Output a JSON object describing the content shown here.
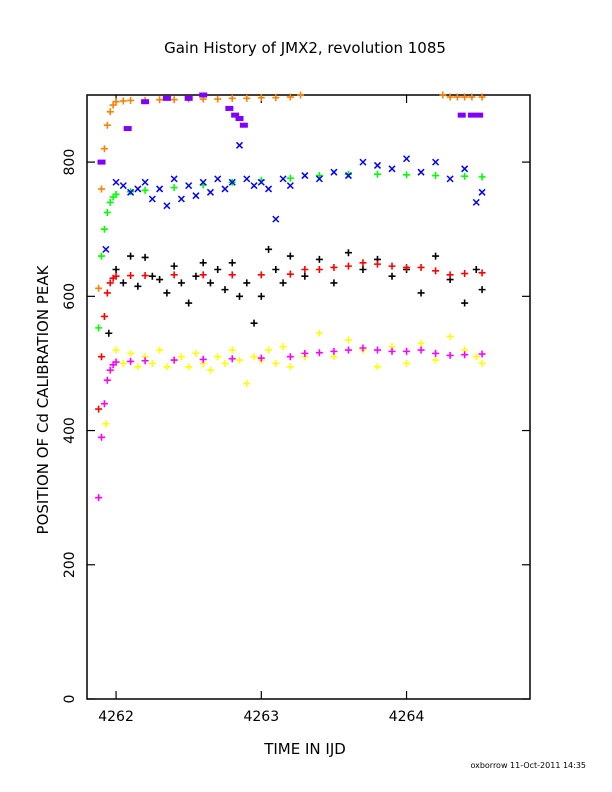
{
  "chart_data": {
    "type": "scatter",
    "title": "Gain History of JMX2, revolution 1085",
    "xlabel": "TIME IN IJD",
    "ylabel": "POSITION OF Cd CALIBRATION PEAK",
    "xlim": [
      4261.8,
      4264.85
    ],
    "ylim": [
      0,
      900
    ],
    "xticks": [
      4262,
      4263,
      4264
    ],
    "yticks": [
      0,
      200,
      400,
      600,
      800
    ],
    "grid": false,
    "footer": "oxborrow 11-Oct-2011 14:35",
    "series": [
      {
        "color": "#ff8000",
        "marker": "plus",
        "x": [
          4261.88,
          4261.9,
          4261.92,
          4261.94,
          4261.96,
          4261.98,
          4262.0,
          4262.05,
          4262.1,
          4262.2,
          4262.3,
          4262.4,
          4262.5,
          4262.6,
          4262.7,
          4262.8,
          4262.9,
          4263.0,
          4263.1,
          4263.2,
          4263.27,
          4264.25,
          4264.3,
          4264.35,
          4264.4,
          4264.45,
          4264.52
        ],
        "y": [
          612,
          760,
          820,
          855,
          875,
          885,
          890,
          891,
          892,
          892,
          893,
          893,
          894,
          894,
          894,
          895,
          895,
          896,
          896,
          897,
          900,
          900,
          897,
          897,
          897,
          897,
          897
        ]
      },
      {
        "color": "#8000ff",
        "marker": "filled",
        "x": [
          4261.9,
          4262.08,
          4262.2,
          4262.35,
          4262.5,
          4262.6,
          4262.78,
          4262.82,
          4262.85,
          4262.88,
          4264.38,
          4264.45,
          4264.5
        ],
        "y": [
          800,
          850,
          890,
          895,
          895,
          900,
          880,
          870,
          865,
          855,
          870,
          870,
          870
        ]
      },
      {
        "color": "#00ff00",
        "marker": "plus",
        "x": [
          4261.88,
          4261.9,
          4261.92,
          4261.94,
          4261.96,
          4261.98,
          4262.0,
          4262.1,
          4262.2,
          4262.4,
          4262.6,
          4262.8,
          4263.0,
          4263.2,
          4263.4,
          4263.6,
          4263.8,
          4264.0,
          4264.2,
          4264.4,
          4264.52
        ],
        "y": [
          553,
          660,
          700,
          725,
          740,
          748,
          752,
          756,
          758,
          762,
          766,
          770,
          773,
          776,
          780,
          782,
          782,
          781,
          780,
          779,
          778
        ]
      },
      {
        "color": "#0000ff",
        "marker": "cross",
        "x": [
          4261.93,
          4262.0,
          4262.05,
          4262.1,
          4262.15,
          4262.2,
          4262.25,
          4262.3,
          4262.35,
          4262.4,
          4262.45,
          4262.5,
          4262.55,
          4262.6,
          4262.65,
          4262.7,
          4262.75,
          4262.8,
          4262.85,
          4262.9,
          4262.95,
          4263.0,
          4263.05,
          4263.1,
          4263.15,
          4263.2,
          4263.3,
          4263.4,
          4263.5,
          4263.6,
          4263.7,
          4263.8,
          4263.9,
          4264.0,
          4264.1,
          4264.2,
          4264.3,
          4264.4,
          4264.48,
          4264.52
        ],
        "y": [
          670,
          770,
          765,
          755,
          760,
          770,
          745,
          760,
          735,
          775,
          745,
          765,
          750,
          770,
          755,
          775,
          760,
          770,
          825,
          775,
          765,
          770,
          760,
          715,
          775,
          765,
          780,
          775,
          785,
          780,
          800,
          795,
          790,
          805,
          785,
          800,
          775,
          790,
          740,
          755
        ]
      },
      {
        "color": "#000000",
        "marker": "plus",
        "x": [
          4261.95,
          4262.0,
          4262.05,
          4262.1,
          4262.15,
          4262.2,
          4262.25,
          4262.3,
          4262.35,
          4262.4,
          4262.45,
          4262.5,
          4262.55,
          4262.6,
          4262.65,
          4262.7,
          4262.75,
          4262.8,
          4262.85,
          4262.9,
          4262.95,
          4263.0,
          4263.05,
          4263.1,
          4263.15,
          4263.2,
          4263.3,
          4263.4,
          4263.5,
          4263.6,
          4263.7,
          4263.8,
          4263.9,
          4264.0,
          4264.1,
          4264.2,
          4264.3,
          4264.4,
          4264.48,
          4264.52
        ],
        "y": [
          545,
          640,
          620,
          660,
          615,
          658,
          630,
          625,
          605,
          645,
          620,
          590,
          630,
          650,
          620,
          640,
          610,
          650,
          600,
          620,
          560,
          600,
          670,
          640,
          620,
          660,
          630,
          655,
          620,
          665,
          640,
          655,
          630,
          640,
          605,
          660,
          625,
          590,
          640,
          610
        ]
      },
      {
        "color": "#ff0000",
        "marker": "plus",
        "x": [
          4261.88,
          4261.9,
          4261.92,
          4261.94,
          4261.96,
          4261.98,
          4262.0,
          4262.1,
          4262.2,
          4262.4,
          4262.6,
          4262.8,
          4263.0,
          4263.2,
          4263.3,
          4263.4,
          4263.5,
          4263.6,
          4263.7,
          4263.8,
          4263.9,
          4264.0,
          4264.1,
          4264.2,
          4264.3,
          4264.4,
          4264.52
        ],
        "y": [
          432,
          510,
          570,
          605,
          620,
          627,
          630,
          631,
          631,
          632,
          632,
          632,
          632,
          633,
          640,
          640,
          643,
          645,
          650,
          648,
          645,
          643,
          643,
          638,
          632,
          634,
          635
        ]
      },
      {
        "color": "#ffff00",
        "marker": "plus",
        "x": [
          4261.93,
          4262.0,
          4262.05,
          4262.1,
          4262.15,
          4262.2,
          4262.25,
          4262.3,
          4262.35,
          4262.4,
          4262.45,
          4262.5,
          4262.55,
          4262.6,
          4262.65,
          4262.7,
          4262.75,
          4262.8,
          4262.85,
          4262.9,
          4262.95,
          4263.0,
          4263.05,
          4263.1,
          4263.15,
          4263.2,
          4263.3,
          4263.4,
          4263.5,
          4263.6,
          4263.7,
          4263.8,
          4263.9,
          4264.0,
          4264.1,
          4264.2,
          4264.3,
          4264.4,
          4264.48,
          4264.52
        ],
        "y": [
          410,
          520,
          500,
          515,
          495,
          510,
          500,
          520,
          495,
          505,
          510,
          495,
          515,
          500,
          490,
          510,
          500,
          520,
          505,
          470,
          510,
          505,
          520,
          500,
          525,
          495,
          510,
          545,
          510,
          535,
          520,
          495,
          525,
          500,
          530,
          505,
          540,
          520,
          510,
          500
        ]
      },
      {
        "color": "#ff00ff",
        "marker": "plus",
        "x": [
          4261.88,
          4261.9,
          4261.92,
          4261.94,
          4261.96,
          4261.98,
          4262.0,
          4262.1,
          4262.2,
          4262.4,
          4262.6,
          4262.8,
          4263.0,
          4263.2,
          4263.3,
          4263.4,
          4263.5,
          4263.6,
          4263.7,
          4263.8,
          4263.9,
          4264.0,
          4264.1,
          4264.2,
          4264.3,
          4264.4,
          4264.52
        ],
        "y": [
          300,
          390,
          440,
          475,
          490,
          498,
          502,
          503,
          504,
          505,
          506,
          507,
          508,
          510,
          515,
          516,
          518,
          520,
          523,
          520,
          518,
          518,
          520,
          515,
          512,
          513,
          514
        ]
      }
    ]
  }
}
